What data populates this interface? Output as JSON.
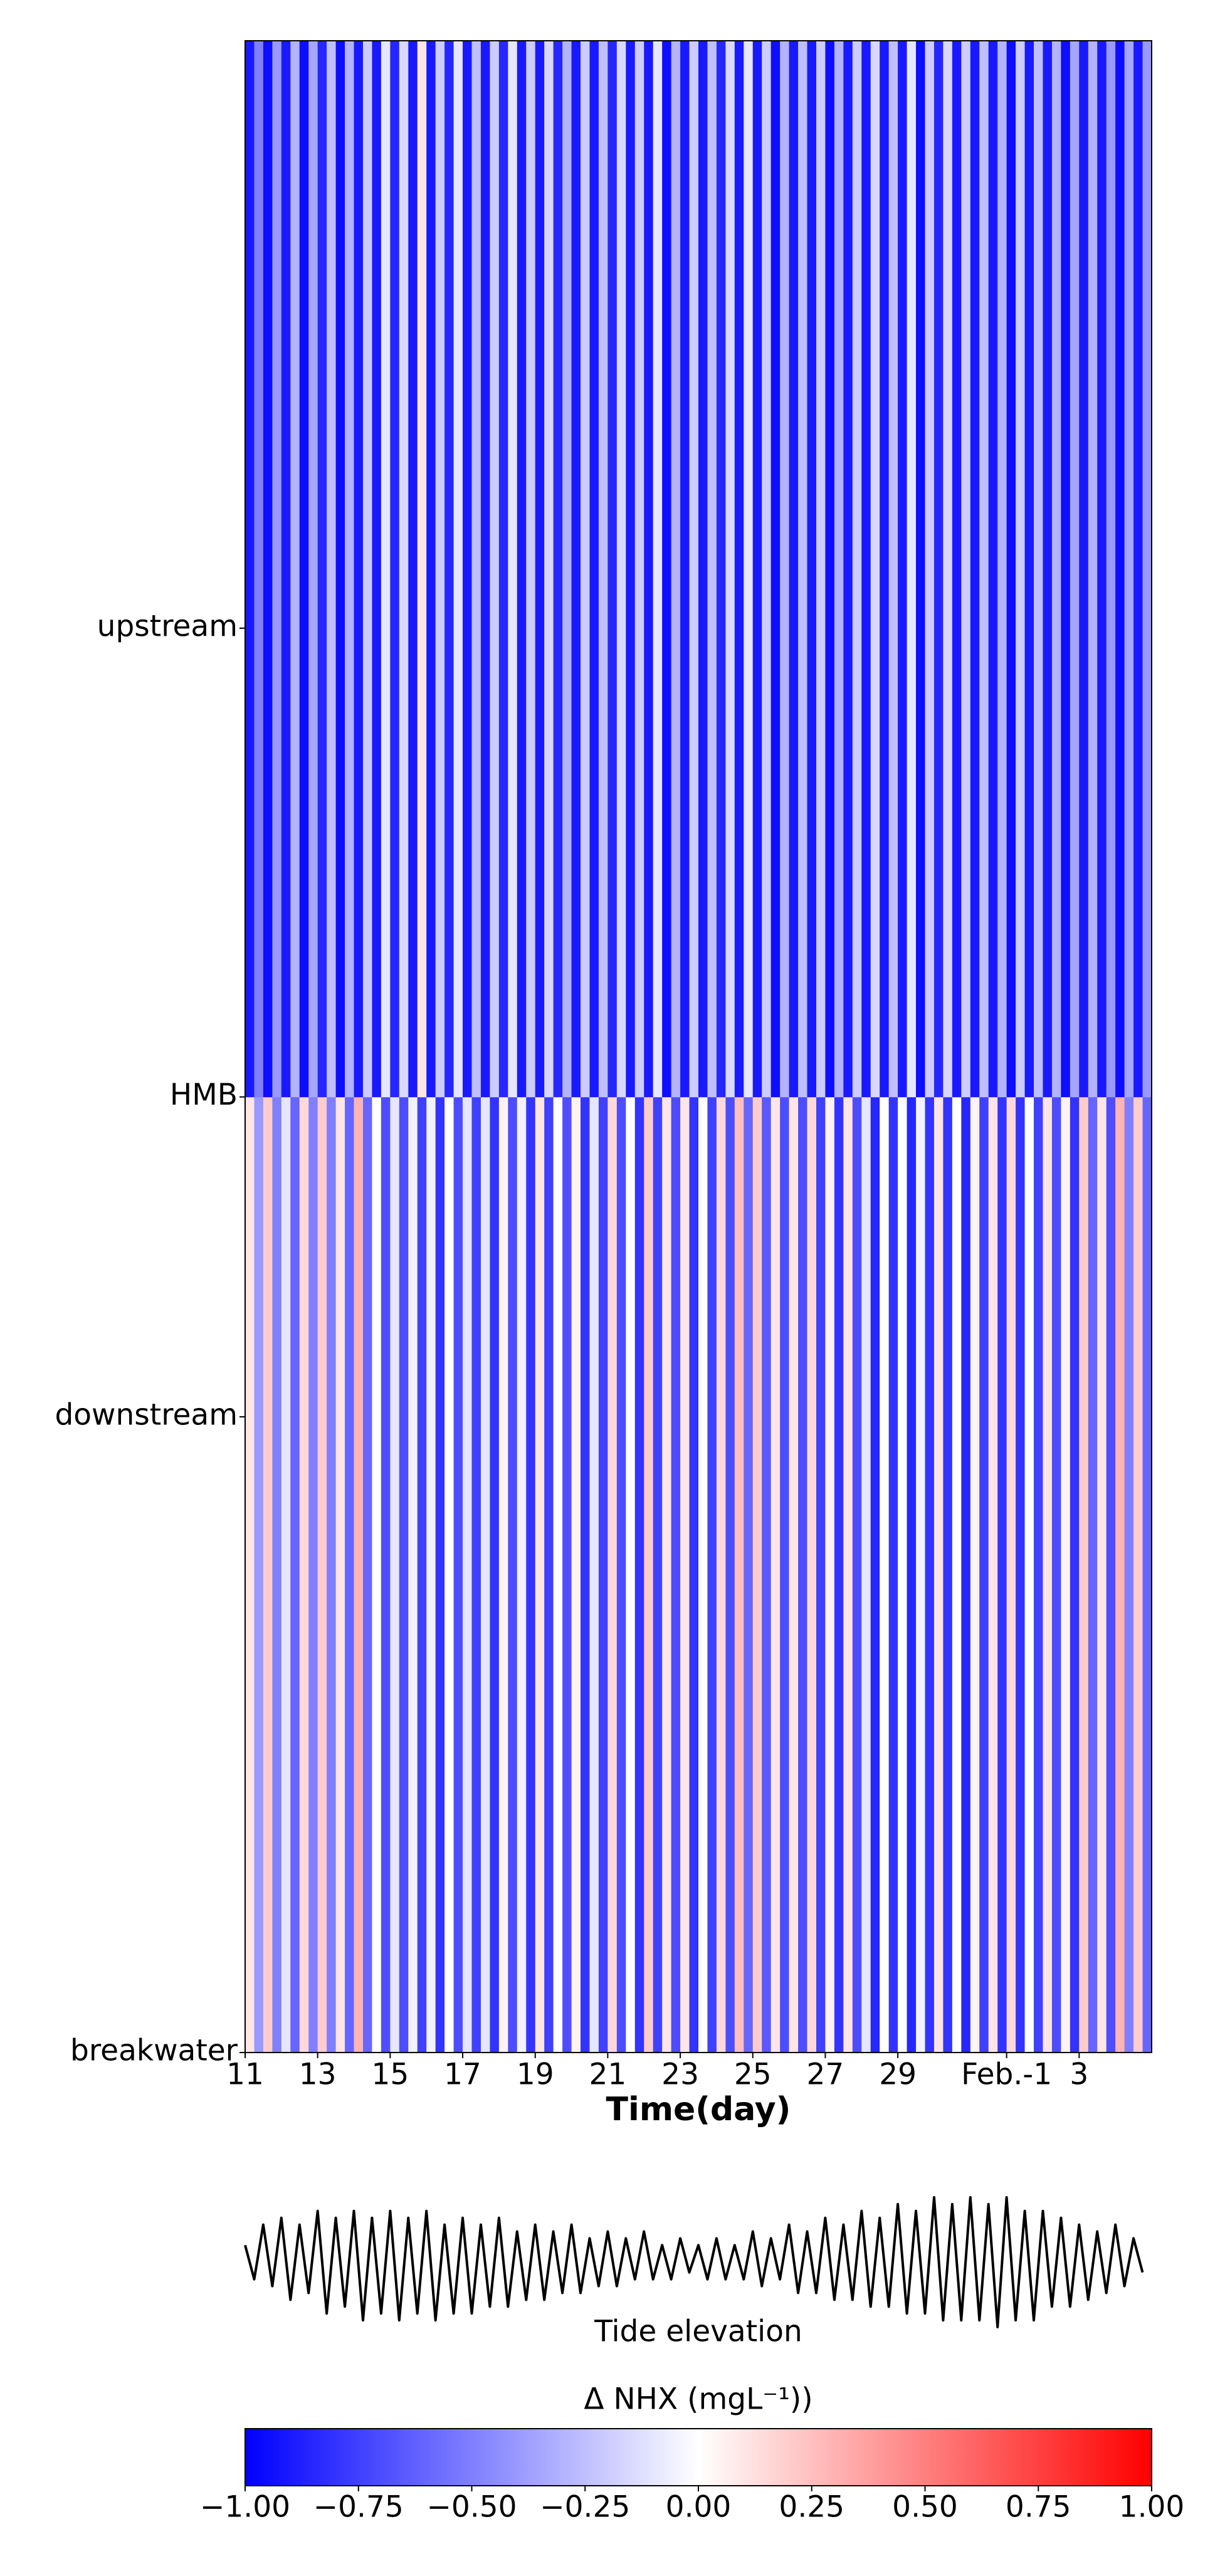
{
  "chart_data": [
    {
      "type": "heatmap",
      "xlabel": "Time(day)",
      "x": [
        11,
        11.25,
        11.5,
        11.75,
        12,
        12.25,
        12.5,
        12.75,
        13,
        13.25,
        13.5,
        13.75,
        14,
        14.25,
        14.5,
        14.75,
        15,
        15.25,
        15.5,
        15.75,
        16,
        16.25,
        16.5,
        16.75,
        17,
        17.25,
        17.5,
        17.75,
        18,
        18.25,
        18.5,
        18.75,
        19,
        19.25,
        19.5,
        19.75,
        20,
        20.25,
        20.5,
        20.75,
        21,
        21.25,
        21.5,
        21.75,
        22,
        22.25,
        22.5,
        22.75,
        23,
        23.25,
        23.5,
        23.75,
        24,
        24.25,
        24.5,
        24.75,
        25,
        25.25,
        25.5,
        25.75,
        26,
        26.25,
        26.5,
        26.75,
        27,
        27.25,
        27.5,
        27.75,
        28,
        28.25,
        28.5,
        28.75,
        29,
        29.25,
        29.5,
        29.75,
        30,
        30.25,
        30.5,
        30.75,
        31,
        31.25,
        31.5,
        31.75,
        32,
        32.25,
        32.5,
        32.75,
        33,
        33.25,
        33.5,
        33.75,
        34,
        34.25,
        34.5,
        34.75,
        35,
        35.25,
        35.5,
        35.75
      ],
      "y": [
        0,
        47.5
      ],
      "values": [
        [
          0.1,
          -0.4,
          0.2,
          -0.5,
          -0.1,
          -0.6,
          0.15,
          -0.5,
          0.2,
          -0.5,
          0.1,
          -0.6,
          0.3,
          -0.6,
          0.0,
          -0.7,
          -0.1,
          -0.7,
          -0.05,
          -0.75,
          -0.05,
          -0.8,
          0.0,
          -0.7,
          -0.1,
          -0.75,
          -0.1,
          -0.8,
          0.05,
          -0.7,
          -0.05,
          -0.8,
          0.1,
          -0.75,
          0.0,
          -0.7,
          0.05,
          -0.8,
          -0.1,
          -0.75,
          0.15,
          -0.7,
          0.0,
          -0.8,
          0.2,
          -0.75,
          0.1,
          -0.7,
          0.1,
          -0.8,
          0.0,
          -0.75,
          0.15,
          -0.7,
          0.25,
          -0.6,
          0.2,
          -0.65,
          0.1,
          -0.7,
          0.1,
          -0.7,
          0.15,
          -0.75,
          0.05,
          -0.8,
          0.1,
          -0.7,
          -0.1,
          -0.85,
          0.0,
          -0.8,
          0.0,
          -0.85,
          -0.05,
          -0.8,
          0.1,
          -0.8,
          0.0,
          -0.85,
          0.05,
          -0.75,
          0.1,
          -0.8,
          0.15,
          -0.8,
          0.0,
          -0.75,
          0.1,
          -0.7,
          0.05,
          -0.8,
          0.2,
          -0.6,
          0.1,
          -0.7,
          0.3,
          -0.5,
          0.2,
          -0.6
        ],
        [
          -0.9,
          -0.5,
          -0.95,
          -0.4,
          -0.9,
          -0.3,
          -0.95,
          -0.35,
          -0.85,
          -0.25,
          -0.95,
          -0.3,
          -0.9,
          -0.2,
          -0.9,
          -0.1,
          -0.85,
          -0.15,
          -0.9,
          0.1,
          -0.9,
          -0.2,
          -0.85,
          -0.1,
          -0.9,
          -0.25,
          -0.9,
          -0.2,
          -0.85,
          -0.1,
          -0.9,
          -0.2,
          -0.9,
          -0.15,
          -0.85,
          -0.3,
          -0.9,
          -0.2,
          -0.9,
          -0.25,
          -0.85,
          -0.15,
          -0.9,
          -0.2,
          -0.9,
          -0.1,
          -0.95,
          -0.3,
          -0.9,
          -0.2,
          -0.9,
          -0.25,
          -0.85,
          -0.15,
          -0.9,
          -0.1,
          -0.9,
          -0.2,
          -0.95,
          -0.3,
          -0.9,
          -0.25,
          -0.9,
          -0.2,
          -0.95,
          -0.3,
          -0.9,
          -0.2,
          -0.9,
          -0.15,
          -0.9,
          -0.25,
          -0.9,
          -0.1,
          -0.95,
          -0.2,
          -0.85,
          -0.15,
          -0.9,
          -0.2,
          -0.9,
          -0.25,
          -0.9,
          -0.3,
          -0.95,
          -0.2,
          -0.9,
          -0.25,
          -0.9,
          -0.3,
          -0.95,
          -0.35,
          -0.9,
          -0.3,
          -0.9,
          -0.4,
          -0.95,
          -0.35,
          -0.9,
          -0.4
        ]
      ],
      "xlim": [
        11,
        36
      ],
      "ylim": [
        0,
        100
      ],
      "xticks": [
        11,
        13,
        15,
        17,
        19,
        21,
        23,
        25,
        27,
        29,
        {
          "value": 32,
          "label": "Feb.-1"
        },
        {
          "value": 34,
          "label": "3"
        }
      ],
      "yticks": [
        {
          "value": 0,
          "label": "breakwater"
        },
        {
          "value": 31.6,
          "label": "downstream"
        },
        {
          "value": 47.5,
          "label": "HMB"
        },
        {
          "value": 70.8,
          "label": "upstream"
        }
      ],
      "clim": [
        -1,
        1
      ],
      "colors": [
        "#0000ff",
        "#ffffff",
        "#ff0000"
      ],
      "colorbar": {
        "label": "Δ NHX (mgL⁻¹))",
        "ticks": [
          {
            "value": -1,
            "label": "−1.00"
          },
          {
            "value": -0.75,
            "label": "−0.75"
          },
          {
            "value": -0.5,
            "label": "−0.50"
          },
          {
            "value": -0.25,
            "label": "−0.25"
          },
          {
            "value": 0,
            "label": "0.00"
          },
          {
            "value": 0.25,
            "label": "0.25"
          },
          {
            "value": 0.5,
            "label": "0.50"
          },
          {
            "value": 0.75,
            "label": "0.75"
          },
          {
            "value": 1,
            "label": "1.00"
          }
        ]
      }
    },
    {
      "type": "line",
      "xlabel": "Tide elevation",
      "color": "#000000",
      "xlim": [
        11,
        36
      ],
      "x": [
        11,
        11.25,
        11.5,
        11.75,
        12,
        12.25,
        12.5,
        12.75,
        13,
        13.25,
        13.5,
        13.75,
        14,
        14.25,
        14.5,
        14.75,
        15,
        15.25,
        15.5,
        15.75,
        16,
        16.25,
        16.5,
        16.75,
        17,
        17.25,
        17.5,
        17.75,
        18,
        18.25,
        18.5,
        18.75,
        19,
        19.25,
        19.5,
        19.75,
        20,
        20.25,
        20.5,
        20.75,
        21,
        21.25,
        21.5,
        21.75,
        22,
        22.25,
        22.5,
        22.75,
        23,
        23.25,
        23.5,
        23.75,
        24,
        24.25,
        24.5,
        24.75,
        25,
        25.25,
        25.5,
        25.75,
        26,
        26.25,
        26.5,
        26.75,
        27,
        27.25,
        27.5,
        27.75,
        28,
        28.25,
        28.5,
        28.75,
        29,
        29.25,
        29.5,
        29.75,
        30,
        30.25,
        30.5,
        30.75,
        31,
        31.25,
        31.5,
        31.75,
        32,
        32.25,
        32.5,
        32.75,
        33,
        33.25,
        33.5,
        33.75,
        34,
        34.25,
        34.5,
        34.75,
        35,
        35.25,
        35.5,
        35.75
      ],
      "values": [
        0.2,
        -0.3,
        0.5,
        -0.4,
        0.6,
        -0.6,
        0.5,
        -0.5,
        0.7,
        -0.8,
        0.6,
        -0.7,
        0.7,
        -0.9,
        0.6,
        -0.8,
        0.7,
        -0.9,
        0.6,
        -0.8,
        0.7,
        -0.9,
        0.5,
        -0.8,
        0.6,
        -0.8,
        0.5,
        -0.7,
        0.6,
        -0.7,
        0.4,
        -0.6,
        0.5,
        -0.6,
        0.4,
        -0.5,
        0.5,
        -0.5,
        0.3,
        -0.4,
        0.4,
        -0.4,
        0.3,
        -0.3,
        0.4,
        -0.3,
        0.2,
        -0.3,
        0.3,
        -0.2,
        0.2,
        -0.3,
        0.3,
        -0.3,
        0.2,
        -0.3,
        0.4,
        -0.4,
        0.3,
        -0.3,
        0.5,
        -0.5,
        0.4,
        -0.5,
        0.6,
        -0.6,
        0.5,
        -0.6,
        0.7,
        -0.7,
        0.6,
        -0.7,
        0.8,
        -0.8,
        0.7,
        -0.8,
        0.9,
        -0.9,
        0.8,
        -0.9,
        0.9,
        -0.9,
        0.8,
        -1.0,
        0.9,
        -0.9,
        0.7,
        -0.9,
        0.7,
        -0.7,
        0.6,
        -0.7,
        0.5,
        -0.6,
        0.4,
        -0.5,
        0.5,
        -0.4,
        0.3,
        -0.2
      ]
    }
  ]
}
